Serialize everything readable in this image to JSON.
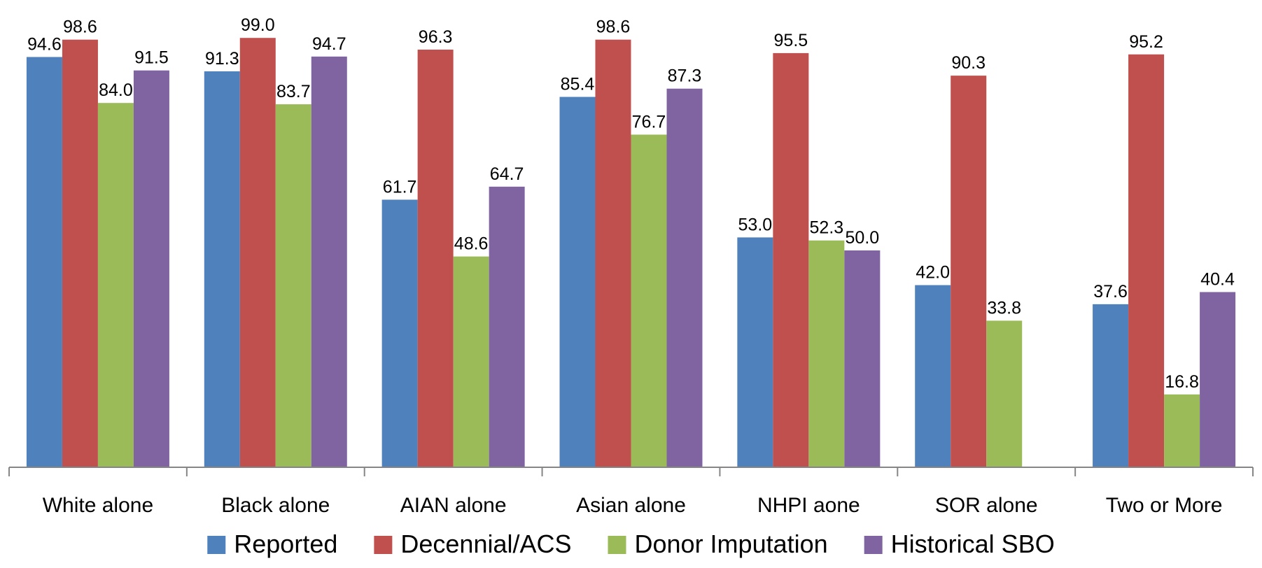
{
  "chart_data": {
    "type": "bar",
    "title": "",
    "xlabel": "",
    "ylabel": "",
    "ylim": [
      0,
      100
    ],
    "grid": false,
    "legend_position": "bottom",
    "categories": [
      "White alone",
      "Black alone",
      "AIAN alone",
      "Asian alone",
      "NHPI aone",
      "SOR alone",
      "Two or More"
    ],
    "series": [
      {
        "name": "Reported",
        "color": "#4F81BD",
        "values": [
          94.6,
          91.3,
          61.7,
          85.4,
          53.0,
          42.0,
          37.6
        ]
      },
      {
        "name": "Decennial/ACS",
        "color": "#C0504D",
        "values": [
          98.6,
          99.0,
          96.3,
          98.6,
          95.5,
          90.3,
          95.2
        ]
      },
      {
        "name": "Donor Imputation",
        "color": "#9BBB59",
        "values": [
          84.0,
          83.7,
          48.6,
          76.7,
          52.3,
          33.8,
          16.8
        ]
      },
      {
        "name": "Historical SBO",
        "color": "#8064A2",
        "values": [
          91.5,
          94.7,
          64.7,
          87.3,
          50.0,
          null,
          40.4
        ]
      }
    ]
  }
}
